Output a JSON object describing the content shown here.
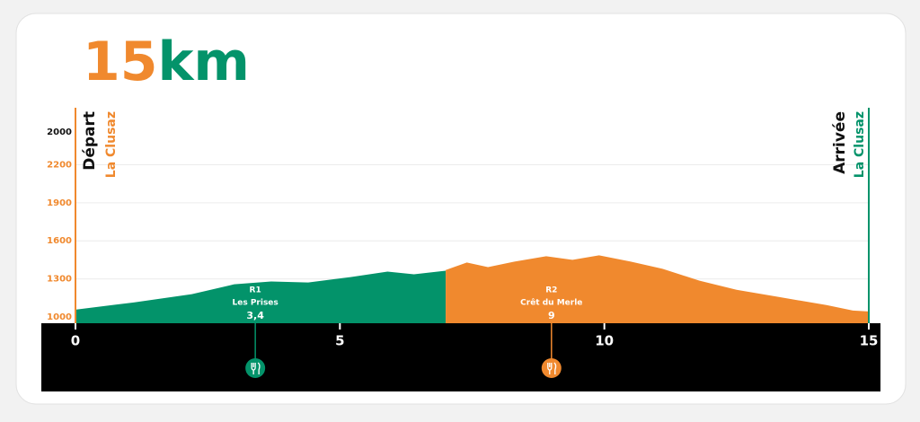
{
  "chart_data": {
    "type": "area",
    "title_number": "15",
    "title_unit": "km",
    "xlim": [
      0,
      15
    ],
    "xticks": [
      0,
      5,
      10,
      15
    ],
    "ylim": [
      950,
      2650
    ],
    "yticks": [
      1000,
      1300,
      1600,
      1900,
      2200
    ],
    "top_label": "2000",
    "grid": true,
    "start": {
      "title": "Départ",
      "place": "La Clusaz",
      "color": "#f0892e"
    },
    "finish": {
      "title": "Arrivée",
      "place": "La Clusaz",
      "color": "#03936a"
    },
    "series": [
      {
        "color": "#03936a",
        "x": [
          0,
          1.1,
          2.2,
          3,
          3.7,
          4.4,
          5.2,
          5.9,
          6.4,
          7
        ],
        "values": [
          1057,
          1114,
          1179,
          1257,
          1279,
          1271,
          1314,
          1357,
          1336,
          1364
        ]
      },
      {
        "color": "#f0892e",
        "x": [
          7,
          7.4,
          7.8,
          8.3,
          8.9,
          9.4,
          9.9,
          10.5,
          11.1,
          11.8,
          12.5,
          13.3,
          14.2,
          14.7,
          15
        ],
        "values": [
          1370,
          1429,
          1393,
          1436,
          1479,
          1450,
          1486,
          1436,
          1379,
          1286,
          1214,
          1157,
          1093,
          1050,
          1043
        ]
      }
    ],
    "stops": [
      {
        "label": "R1",
        "name": "Les Prises",
        "x": 3.4,
        "x_label": "3,4",
        "color": "#03936a"
      },
      {
        "label": "R2",
        "name": "Crêt du Merle",
        "x": 9,
        "color": "#f0892e"
      }
    ]
  }
}
